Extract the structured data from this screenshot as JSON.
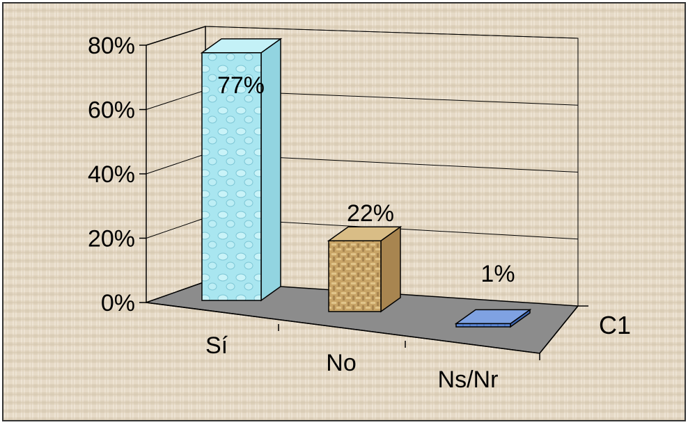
{
  "chart_data": {
    "type": "bar",
    "categories": [
      "Sí",
      "No",
      "Ns/Nr"
    ],
    "series": [
      {
        "name": "C1",
        "values": [
          77,
          22,
          1
        ],
        "data_labels": [
          "77%",
          "22%",
          "1%"
        ]
      }
    ],
    "y_ticks": [
      "0%",
      "20%",
      "40%",
      "60%",
      "80%"
    ],
    "ylim": [
      0,
      80
    ],
    "grid": true,
    "title": "",
    "xlabel": "",
    "ylabel": "",
    "depth_axis_label": "C1",
    "colors": {
      "background": "#e7dccb",
      "floor": "#8c8c8c",
      "gridline": "#000000",
      "bar_si": "#a8e8f2",
      "bar_no": "#c9a56a",
      "bar_ns": "#5b86d6"
    }
  }
}
